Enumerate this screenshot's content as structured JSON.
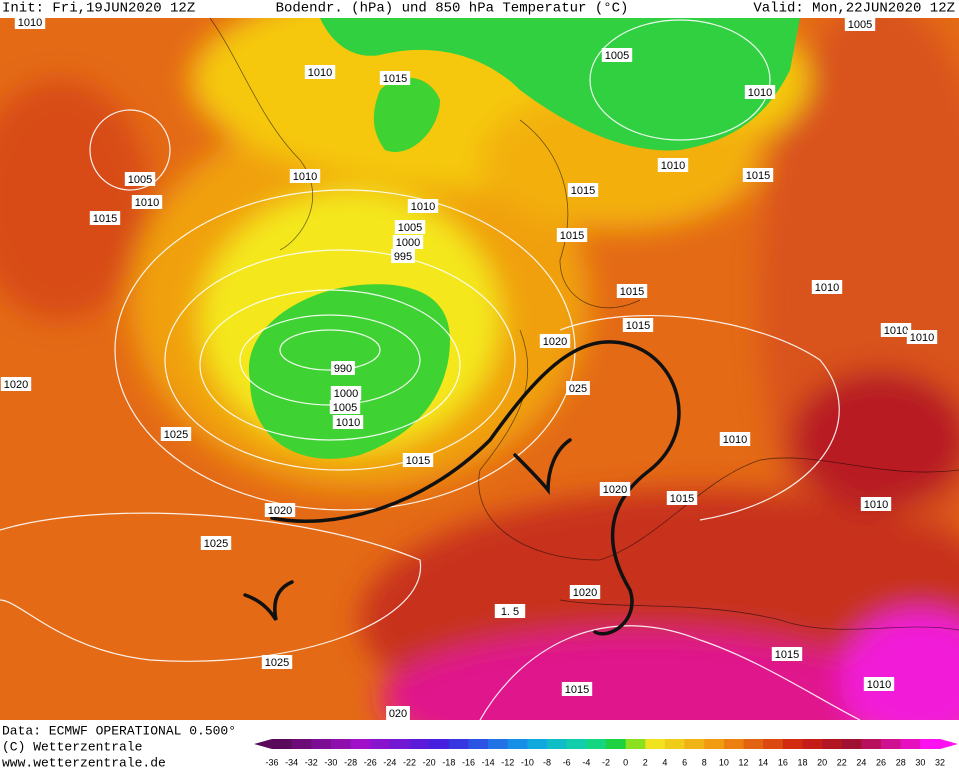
{
  "header": {
    "init": "Init: Fri,19JUN2020 12Z",
    "title": "Bodendr. (hPa) und 850 hPa Temperatur (°C)",
    "valid": "Valid: Mon,22JUN2020 12Z"
  },
  "map": {
    "isobar_labels": [
      "1010",
      "1010",
      "1015",
      "1005",
      "1005",
      "1010",
      "1005",
      "1010",
      "1015",
      "1010",
      "1010",
      "1005",
      "1000",
      "995",
      "1015",
      "1010",
      "1015",
      "1015",
      "1015",
      "1010",
      "1015",
      "1010",
      "1010",
      "1020",
      "990",
      "1020",
      "025",
      "1000",
      "1005",
      "1010",
      "1025",
      "1010",
      "1015",
      "1020",
      "1015",
      "1010",
      "1020",
      "1025",
      "1020",
      "1. 5",
      "1025",
      "1015",
      "1010",
      "1015",
      "020"
    ]
  },
  "legend": {
    "labels": [
      "-36",
      "-34",
      "-32",
      "-30",
      "-28",
      "-26",
      "-24",
      "-22",
      "-20",
      "-18",
      "-16",
      "-14",
      "-12",
      "-10",
      "-8",
      "-6",
      "-4",
      "-2",
      "0",
      "2",
      "4",
      "6",
      "8",
      "10",
      "12",
      "14",
      "16",
      "18",
      "20",
      "22",
      "24",
      "26",
      "28",
      "30",
      "32"
    ]
  },
  "footer": [
    "Data: ECMWF OPERATIONAL 0.500°",
    "(C) Wetterzentrale",
    "www.wetterzentrale.de"
  ]
}
